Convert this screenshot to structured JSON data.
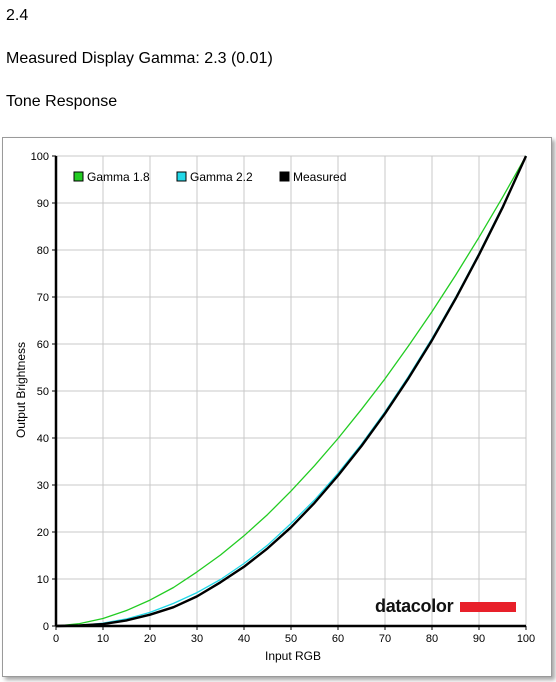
{
  "header": {
    "number": "2.4",
    "measured_gamma_text": "Measured Display Gamma: 2.3 (0.01)",
    "section_title": "Tone Response"
  },
  "chart_data": {
    "type": "line",
    "title": "",
    "xlabel": "Input RGB",
    "ylabel": "Output Brightness",
    "xlim": [
      0,
      100
    ],
    "ylim": [
      0,
      100
    ],
    "xticks": [
      0,
      10,
      20,
      30,
      40,
      50,
      60,
      70,
      80,
      90,
      100
    ],
    "yticks": [
      0,
      10,
      20,
      30,
      40,
      50,
      60,
      70,
      80,
      90,
      100
    ],
    "grid": true,
    "legend_position": "top-left",
    "x": [
      0,
      5,
      10,
      15,
      20,
      25,
      30,
      35,
      40,
      45,
      50,
      55,
      60,
      65,
      70,
      75,
      80,
      85,
      90,
      95,
      100
    ],
    "series": [
      {
        "name": "Gamma 1.8",
        "color": "#22cc22",
        "values": [
          0,
          0.5,
          1.6,
          3.3,
          5.5,
          8.2,
          11.5,
          15.1,
          19.2,
          23.7,
          28.7,
          34.1,
          39.9,
          46.1,
          52.6,
          59.6,
          66.9,
          74.6,
          82.7,
          91.2,
          100
        ]
      },
      {
        "name": "Gamma 2.2",
        "color": "#22d8e8",
        "values": [
          0,
          0.1,
          0.6,
          1.5,
          2.9,
          4.8,
          7.1,
          9.9,
          13.3,
          17.2,
          21.8,
          26.8,
          32.5,
          38.7,
          45.6,
          53.1,
          61.2,
          69.9,
          79.3,
          89.3,
          100
        ]
      },
      {
        "name": "Measured",
        "color": "#000000",
        "values": [
          0,
          0.1,
          0.4,
          1.2,
          2.4,
          4.0,
          6.3,
          9.3,
          12.6,
          16.5,
          21.0,
          26.2,
          32.0,
          38.3,
          45.2,
          52.7,
          60.8,
          69.6,
          79.0,
          89.0,
          100
        ]
      }
    ]
  },
  "logo": {
    "text": "datacolor",
    "bar_color": "#e8202a"
  }
}
